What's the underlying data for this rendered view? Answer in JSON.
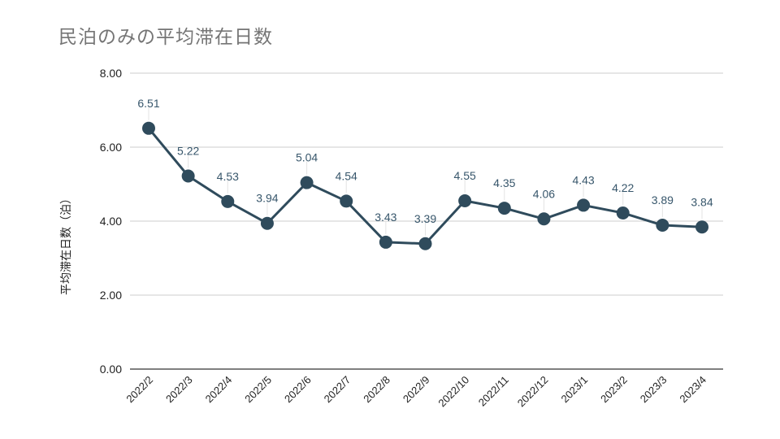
{
  "chart_data": {
    "type": "line",
    "title": "民泊のみの平均滞在日数",
    "xlabel": "",
    "ylabel": "平均滞在日数（泊）",
    "categories": [
      "2022/2",
      "2022/3",
      "2022/4",
      "2022/5",
      "2022/6",
      "2022/7",
      "2022/8",
      "2022/9",
      "2022/10",
      "2022/11",
      "2022/12",
      "2023/1",
      "2023/2",
      "2023/3",
      "2023/4"
    ],
    "values": [
      6.51,
      5.22,
      4.53,
      3.94,
      5.04,
      4.54,
      3.43,
      3.39,
      4.55,
      4.35,
      4.06,
      4.43,
      4.22,
      3.89,
      3.84
    ],
    "data_labels": [
      "6.51",
      "5.22",
      "4.53",
      "3.94",
      "5.04",
      "4.54",
      "3.43",
      "3.39",
      "4.55",
      "4.35",
      "4.06",
      "4.43",
      "4.22",
      "3.89",
      "3.84"
    ],
    "ylim": [
      0,
      8
    ],
    "yticks": [
      "0.00",
      "2.00",
      "4.00",
      "6.00",
      "8.00"
    ],
    "grid": true,
    "line_color": "#2f4b5c",
    "label_color": "#37566b"
  }
}
